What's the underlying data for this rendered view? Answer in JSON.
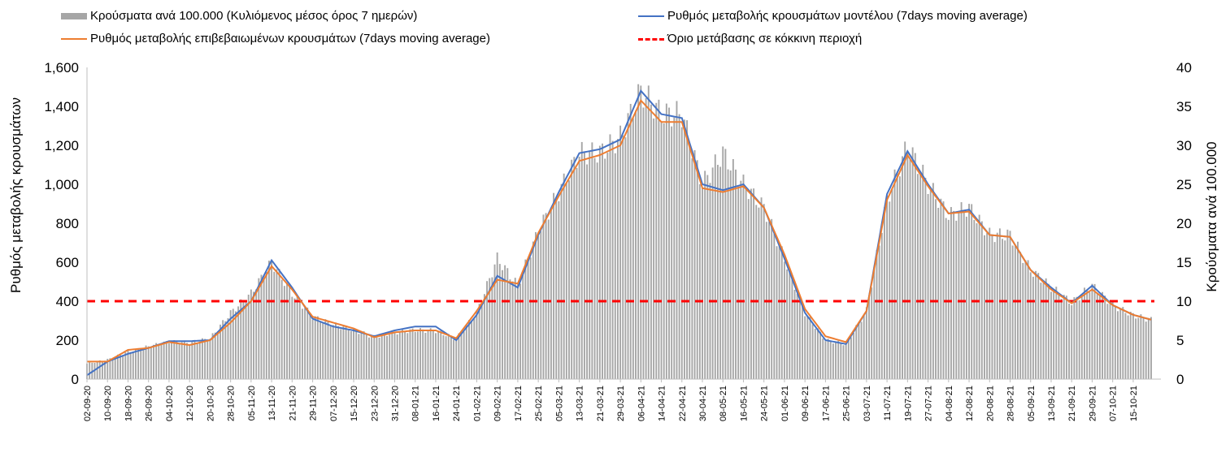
{
  "legend": {
    "bars": "Κρούσματα ανά 100.000 (Κυλιόμενος μέσος όρος 7 ημερών)",
    "model": "Ρυθμός μεταβολής κρουσμάτων μοντέλου (7days moving average)",
    "confirmed": "Ρυθμός μεταβολής επιβεβαιωμένων κρουσμάτων (7days moving average)",
    "threshold": "Όριο μετάβασης σε κόκκινη περιοχή"
  },
  "chart_data": {
    "type": "bar",
    "ylabel": "Ρυθμός μεταβολής κρουσμάτων",
    "y2label": "Κρούσματα ανά 100.000",
    "ylim": [
      0,
      1600
    ],
    "y2lim": [
      0,
      40
    ],
    "yticks": [
      "0",
      "200",
      "400",
      "600",
      "800",
      "1,000",
      "1,200",
      "1,400",
      "1,600"
    ],
    "y2ticks": [
      "0",
      "5",
      "10",
      "15",
      "20",
      "25",
      "30",
      "35",
      "40"
    ],
    "x_start": "02-09-20",
    "x_end": "22-10-21",
    "x_tick_labels": [
      "02-09-20",
      "10-09-20",
      "18-09-20",
      "26-09-20",
      "04-10-20",
      "12-10-20",
      "20-10-20",
      "28-10-20",
      "05-11-20",
      "13-11-20",
      "21-11-20",
      "29-11-20",
      "07-12-20",
      "15-12-20",
      "23-12-20",
      "31-12-20",
      "08-01-21",
      "16-01-21",
      "24-01-21",
      "01-02-21",
      "09-02-21",
      "17-02-21",
      "25-02-21",
      "05-03-21",
      "13-03-21",
      "21-03-21",
      "29-03-21",
      "06-04-21",
      "14-04-21",
      "22-04-21",
      "30-04-21",
      "08-05-21",
      "16-05-21",
      "24-05-21",
      "01-06-21",
      "09-06-21",
      "17-06-21",
      "25-06-21",
      "03-07-21",
      "11-07-21",
      "19-07-21",
      "27-07-21",
      "04-08-21",
      "12-08-21",
      "20-08-21",
      "28-08-21",
      "05-09-21",
      "13-09-21",
      "21-09-21",
      "29-09-21",
      "07-10-21",
      "15-10-21"
    ],
    "threshold": 400,
    "series": [
      {
        "name": "Ρυθμός μεταβολής κρουσμάτων μοντέλου (7days moving average)",
        "color": "#4472c4",
        "points": [
          [
            "02-09-20",
            20
          ],
          [
            "10-09-20",
            90
          ],
          [
            "18-09-20",
            130
          ],
          [
            "26-09-20",
            160
          ],
          [
            "04-10-20",
            195
          ],
          [
            "12-10-20",
            195
          ],
          [
            "20-10-20",
            200
          ],
          [
            "28-10-20",
            310
          ],
          [
            "05-11-20",
            400
          ],
          [
            "13-11-20",
            610
          ],
          [
            "21-11-20",
            470
          ],
          [
            "29-11-20",
            310
          ],
          [
            "07-12-20",
            270
          ],
          [
            "15-12-20",
            250
          ],
          [
            "23-12-20",
            220
          ],
          [
            "31-12-20",
            250
          ],
          [
            "08-01-21",
            270
          ],
          [
            "16-01-21",
            270
          ],
          [
            "24-01-21",
            200
          ],
          [
            "01-02-21",
            330
          ],
          [
            "09-02-21",
            530
          ],
          [
            "17-02-21",
            470
          ],
          [
            "25-02-21",
            740
          ],
          [
            "05-03-21",
            960
          ],
          [
            "13-03-21",
            1160
          ],
          [
            "21-03-21",
            1180
          ],
          [
            "29-03-21",
            1230
          ],
          [
            "06-04-21",
            1480
          ],
          [
            "14-04-21",
            1360
          ],
          [
            "22-04-21",
            1340
          ],
          [
            "30-04-21",
            1000
          ],
          [
            "08-05-21",
            970
          ],
          [
            "16-05-21",
            1000
          ],
          [
            "24-05-21",
            880
          ],
          [
            "01-06-21",
            620
          ],
          [
            "09-06-21",
            340
          ],
          [
            "17-06-21",
            200
          ],
          [
            "25-06-21",
            180
          ],
          [
            "03-07-21",
            350
          ],
          [
            "11-07-21",
            950
          ],
          [
            "19-07-21",
            1170
          ],
          [
            "27-07-21",
            1000
          ],
          [
            "04-08-21",
            850
          ],
          [
            "12-08-21",
            870
          ],
          [
            "20-08-21",
            740
          ],
          [
            "28-08-21",
            730
          ],
          [
            "05-09-21",
            560
          ],
          [
            "13-09-21",
            470
          ],
          [
            "21-09-21",
            390
          ],
          [
            "29-09-21",
            480
          ],
          [
            "07-10-21",
            380
          ],
          [
            "15-10-21",
            330
          ],
          [
            "22-10-21",
            305
          ]
        ]
      },
      {
        "name": "Ρυθμός μεταβολής επιβεβαιωμένων κρουσμάτων (7days moving average)",
        "color": "#ed7d31",
        "points": [
          [
            "02-09-20",
            90
          ],
          [
            "10-09-20",
            90
          ],
          [
            "18-09-20",
            150
          ],
          [
            "26-09-20",
            160
          ],
          [
            "04-10-20",
            190
          ],
          [
            "12-10-20",
            175
          ],
          [
            "20-10-20",
            200
          ],
          [
            "28-10-20",
            290
          ],
          [
            "05-11-20",
            400
          ],
          [
            "13-11-20",
            580
          ],
          [
            "21-11-20",
            460
          ],
          [
            "29-11-20",
            320
          ],
          [
            "07-12-20",
            290
          ],
          [
            "15-12-20",
            260
          ],
          [
            "23-12-20",
            215
          ],
          [
            "31-12-20",
            240
          ],
          [
            "08-01-21",
            250
          ],
          [
            "16-01-21",
            250
          ],
          [
            "24-01-21",
            210
          ],
          [
            "01-02-21",
            350
          ],
          [
            "09-02-21",
            510
          ],
          [
            "17-02-21",
            490
          ],
          [
            "25-02-21",
            750
          ],
          [
            "05-03-21",
            940
          ],
          [
            "13-03-21",
            1120
          ],
          [
            "21-03-21",
            1150
          ],
          [
            "29-03-21",
            1200
          ],
          [
            "06-04-21",
            1430
          ],
          [
            "14-04-21",
            1320
          ],
          [
            "22-04-21",
            1320
          ],
          [
            "30-04-21",
            980
          ],
          [
            "08-05-21",
            960
          ],
          [
            "16-05-21",
            990
          ],
          [
            "24-05-21",
            880
          ],
          [
            "01-06-21",
            640
          ],
          [
            "09-06-21",
            360
          ],
          [
            "17-06-21",
            220
          ],
          [
            "25-06-21",
            190
          ],
          [
            "03-07-21",
            350
          ],
          [
            "11-07-21",
            920
          ],
          [
            "19-07-21",
            1150
          ],
          [
            "27-07-21",
            990
          ],
          [
            "04-08-21",
            850
          ],
          [
            "12-08-21",
            860
          ],
          [
            "20-08-21",
            740
          ],
          [
            "28-08-21",
            730
          ],
          [
            "05-09-21",
            560
          ],
          [
            "13-09-21",
            460
          ],
          [
            "21-09-21",
            390
          ],
          [
            "29-09-21",
            460
          ],
          [
            "07-10-21",
            380
          ],
          [
            "15-10-21",
            330
          ],
          [
            "22-10-21",
            305
          ]
        ]
      },
      {
        "name": "Κρούσματα ανά 100.000 (Κυλιόμενος μέσος όρος 7 ημερών)",
        "color": "#a6a6a6",
        "axis": "y2",
        "points": [
          [
            "02-09-20",
            2
          ],
          [
            "10-09-20",
            2.5
          ],
          [
            "18-09-20",
            3.5
          ],
          [
            "26-09-20",
            4.2
          ],
          [
            "04-10-20",
            4.8
          ],
          [
            "12-10-20",
            4.7
          ],
          [
            "20-10-20",
            5.2
          ],
          [
            "28-10-20",
            8.5
          ],
          [
            "05-11-20",
            11
          ],
          [
            "13-11-20",
            15
          ],
          [
            "21-11-20",
            11
          ],
          [
            "29-11-20",
            8
          ],
          [
            "07-12-20",
            7
          ],
          [
            "15-12-20",
            6.3
          ],
          [
            "23-12-20",
            5.4
          ],
          [
            "31-12-20",
            6
          ],
          [
            "08-01-21",
            6.3
          ],
          [
            "16-01-21",
            6.2
          ],
          [
            "24-01-21",
            5.2
          ],
          [
            "01-02-21",
            8.5
          ],
          [
            "09-02-21",
            15.5
          ],
          [
            "17-02-21",
            12
          ],
          [
            "25-02-21",
            19
          ],
          [
            "05-03-21",
            24
          ],
          [
            "13-03-21",
            29
          ],
          [
            "21-03-21",
            29
          ],
          [
            "29-03-21",
            31
          ],
          [
            "06-04-21",
            37
          ],
          [
            "14-04-21",
            34
          ],
          [
            "22-04-21",
            34
          ],
          [
            "30-04-21",
            25
          ],
          [
            "08-05-21",
            29
          ],
          [
            "16-05-21",
            25
          ],
          [
            "24-05-21",
            22
          ],
          [
            "01-06-21",
            15.5
          ],
          [
            "09-06-21",
            8.5
          ],
          [
            "17-06-21",
            5
          ],
          [
            "25-06-21",
            4.5
          ],
          [
            "03-07-21",
            8.8
          ],
          [
            "11-07-21",
            23
          ],
          [
            "19-07-21",
            30
          ],
          [
            "27-07-21",
            25
          ],
          [
            "04-08-21",
            21
          ],
          [
            "12-08-21",
            22
          ],
          [
            "20-08-21",
            18.5
          ],
          [
            "28-08-21",
            18.5
          ],
          [
            "05-09-21",
            14
          ],
          [
            "13-09-21",
            11.8
          ],
          [
            "21-09-21",
            9.8
          ],
          [
            "29-09-21",
            12
          ],
          [
            "07-10-21",
            9.5
          ],
          [
            "15-10-21",
            8.2
          ],
          [
            "22-10-21",
            7.6
          ]
        ]
      }
    ]
  }
}
